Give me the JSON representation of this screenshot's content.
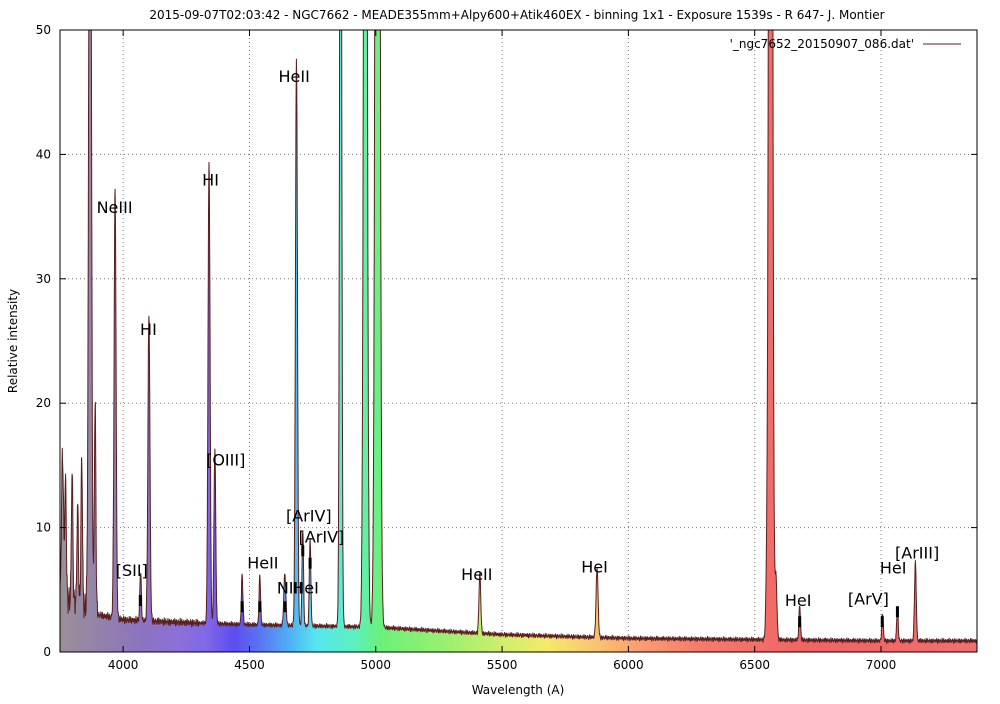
{
  "chart_data": {
    "type": "line",
    "title": "2015-09-07T02:03:42 - NGC7662 - MEADE355mm+Alpy600+Atik460EX - binning 1x1 - Exposure 1539s - R 647- J. Montier",
    "xlabel": "Wavelength (A)",
    "ylabel": "Relative intensity",
    "xlim": [
      3750,
      7380
    ],
    "ylim": [
      0,
      50
    ],
    "x_ticks": [
      4000,
      4500,
      5000,
      5500,
      6000,
      6500,
      7000
    ],
    "y_ticks": [
      0,
      10,
      20,
      30,
      40,
      50
    ],
    "grid": true,
    "legend_position": "top-right",
    "fill": "visible-spectrum gradient under curve",
    "line_color": "#5a1e1e",
    "series": [
      {
        "name": "'_ngc7652_20150907_086.dat'",
        "continuum": [
          {
            "x": 3750,
            "y": 4.5
          },
          {
            "x": 3800,
            "y": 4.0
          },
          {
            "x": 3900,
            "y": 3.0
          },
          {
            "x": 4000,
            "y": 2.6
          },
          {
            "x": 4200,
            "y": 2.4
          },
          {
            "x": 4500,
            "y": 2.2
          },
          {
            "x": 5000,
            "y": 2.0
          },
          {
            "x": 5500,
            "y": 1.4
          },
          {
            "x": 6000,
            "y": 1.1
          },
          {
            "x": 6500,
            "y": 1.0
          },
          {
            "x": 7000,
            "y": 0.9
          },
          {
            "x": 7380,
            "y": 0.9
          }
        ],
        "peaks": [
          {
            "x": 3760,
            "y": 11.5,
            "w": 4
          },
          {
            "x": 3772,
            "y": 9.5,
            "w": 3
          },
          {
            "x": 3798,
            "y": 10.5,
            "w": 3
          },
          {
            "x": 3820,
            "y": 8.0,
            "w": 3
          },
          {
            "x": 3836,
            "y": 12.0,
            "w": 3
          },
          {
            "x": 3869,
            "y": 80,
            "w": 5
          },
          {
            "x": 3889,
            "y": 17.0,
            "w": 3
          },
          {
            "x": 3968,
            "y": 34.5,
            "w": 4
          },
          {
            "x": 4069,
            "y": 4.0,
            "w": 3
          },
          {
            "x": 4102,
            "y": 24.7,
            "w": 4
          },
          {
            "x": 4340,
            "y": 37.2,
            "w": 4
          },
          {
            "x": 4363,
            "y": 14.0,
            "w": 3.5
          },
          {
            "x": 4471,
            "y": 4.0,
            "w": 3
          },
          {
            "x": 4541,
            "y": 4.0,
            "w": 3
          },
          {
            "x": 4640,
            "y": 4.2,
            "w": 4
          },
          {
            "x": 4686,
            "y": 45.5,
            "w": 4
          },
          {
            "x": 4711,
            "y": 7.8,
            "w": 3
          },
          {
            "x": 4740,
            "y": 7.0,
            "w": 3
          },
          {
            "x": 4861,
            "y": 80,
            "w": 4
          },
          {
            "x": 4959,
            "y": 120,
            "w": 6
          },
          {
            "x": 5007,
            "y": 180,
            "w": 7
          },
          {
            "x": 5412,
            "y": 4.8,
            "w": 3.5
          },
          {
            "x": 5876,
            "y": 5.6,
            "w": 4
          },
          {
            "x": 6548,
            "y": 4.5,
            "w": 4
          },
          {
            "x": 6563,
            "y": 160,
            "w": 6
          },
          {
            "x": 6584,
            "y": 5.0,
            "w": 4
          },
          {
            "x": 6678,
            "y": 2.8,
            "w": 3
          },
          {
            "x": 7006,
            "y": 2.2,
            "w": 3
          },
          {
            "x": 7065,
            "y": 2.6,
            "w": 3
          },
          {
            "x": 7136,
            "y": 6.3,
            "w": 3.5
          }
        ]
      }
    ],
    "annotations": [
      {
        "text": "NeIII",
        "x": 3966,
        "y": 35.3
      },
      {
        "text": "HI",
        "x": 4100,
        "y": 25.5
      },
      {
        "text": "HI",
        "x": 4346,
        "y": 37.5
      },
      {
        "text": "HeII",
        "x": 4677,
        "y": 45.8
      },
      {
        "text": "[SII]",
        "x": 4034,
        "y": 6.1
      },
      {
        "text": "[OIII]",
        "x": 4406,
        "y": 15.0
      },
      {
        "text": "HeII",
        "x": 4553,
        "y": 6.7
      },
      {
        "text": "HeI",
        "x": 4722,
        "y": 4.7
      },
      {
        "text": "NIII",
        "x": 4660,
        "y": 4.7
      },
      {
        "text": "[ArIV]",
        "x": 4735,
        "y": 10.5
      },
      {
        "text": "[ArIV]",
        "x": 4785,
        "y": 8.8
      },
      {
        "text": "HeII",
        "x": 5400,
        "y": 5.8
      },
      {
        "text": "HeI",
        "x": 5866,
        "y": 6.4
      },
      {
        "text": "HeI",
        "x": 6672,
        "y": 3.7
      },
      {
        "text": "[ArV]",
        "x": 6950,
        "y": 3.8
      },
      {
        "text": "HeI",
        "x": 7048,
        "y": 6.3
      },
      {
        "text": "[ArIII]",
        "x": 7143,
        "y": 7.5
      }
    ],
    "markers": [
      {
        "x": 4068,
        "y": 4.5
      },
      {
        "x": 4471,
        "y": 4.0
      },
      {
        "x": 4541,
        "y": 4.0
      },
      {
        "x": 4641,
        "y": 4.0
      },
      {
        "x": 4711,
        "y": 8.5
      },
      {
        "x": 4740,
        "y": 7.5
      },
      {
        "x": 6678,
        "y": 2.8
      },
      {
        "x": 7005,
        "y": 2.8
      },
      {
        "x": 7065,
        "y": 3.6
      }
    ]
  }
}
